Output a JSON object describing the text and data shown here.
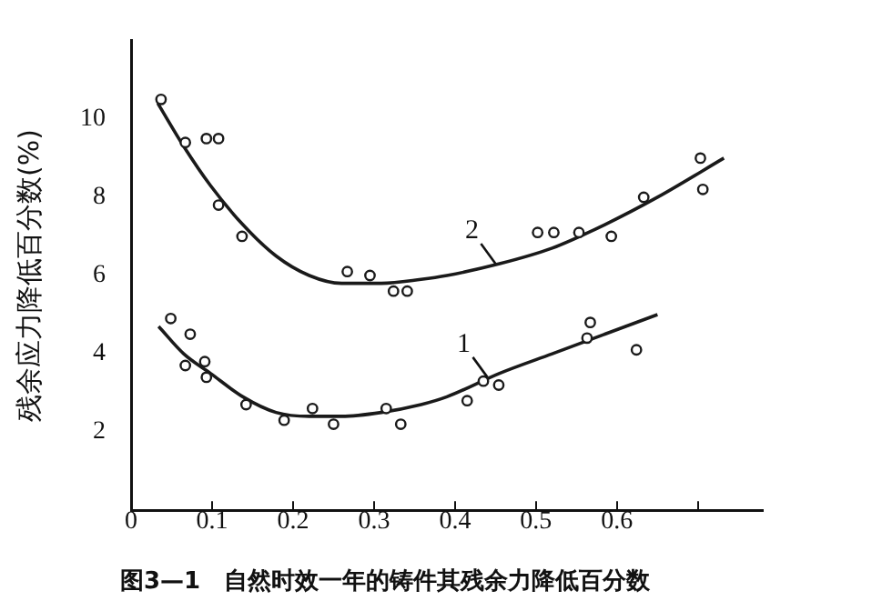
{
  "chart_data": {
    "type": "scatter",
    "title": "图3—1　自然时效一年的铸件其残余力降低百分数",
    "ylabel": "残余应力降低百分数(%)",
    "xlim": [
      0,
      0.78
    ],
    "xticks": [
      0,
      0.1,
      0.2,
      0.3,
      0.4,
      0.5,
      0.6,
      {
        "value": 0.7,
        "label": null
      }
    ],
    "ylim": [
      0,
      12
    ],
    "yticks": [
      2,
      4,
      6,
      8,
      10
    ],
    "grid": false,
    "legend": false,
    "series": [
      {
        "marker": "circle",
        "color": "#1a1a1a",
        "x": [
          0.037,
          0.067,
          0.093,
          0.108,
          0.108,
          0.137,
          0.267,
          0.295,
          0.324,
          0.341,
          0.502,
          0.522,
          0.553,
          0.593,
          0.633,
          0.703,
          0.706
        ],
        "values": [
          10.5,
          9.4,
          9.5,
          9.5,
          7.8,
          7.0,
          6.1,
          6.0,
          5.6,
          5.6,
          7.1,
          7.1,
          7.1,
          7.0,
          8.0,
          9.0,
          8.2
        ]
      },
      {
        "marker": "circle",
        "color": "#1a1a1a",
        "x": [
          0.049,
          0.073,
          0.067,
          0.091,
          0.093,
          0.142,
          0.189,
          0.224,
          0.25,
          0.315,
          0.333,
          0.415,
          0.435,
          0.454,
          0.563,
          0.567,
          0.624
        ],
        "values": [
          4.9,
          4.5,
          3.7,
          3.8,
          3.4,
          2.7,
          2.3,
          2.6,
          2.2,
          2.6,
          2.2,
          2.8,
          3.3,
          3.2,
          4.4,
          4.8,
          4.1
        ]
      },
      {
        "type": "line",
        "marker": "none",
        "color": "#1a1a1a",
        "x": [
          0.033,
          0.065,
          0.098,
          0.138,
          0.179,
          0.22,
          0.26,
          0.309,
          0.358,
          0.39,
          0.455,
          0.52,
          0.585,
          0.65,
          0.732
        ],
        "values": [
          10.4,
          9.3,
          8.3,
          7.3,
          6.5,
          6.0,
          5.8,
          5.8,
          5.9,
          6.0,
          6.3,
          6.7,
          7.3,
          8.0,
          9.0
        ]
      },
      {
        "type": "line",
        "marker": "none",
        "color": "#1a1a1a",
        "x": [
          0.034,
          0.065,
          0.098,
          0.138,
          0.179,
          0.22,
          0.26,
          0.309,
          0.358,
          0.39,
          0.455,
          0.52,
          0.585,
          0.65
        ],
        "values": [
          4.7,
          4.0,
          3.5,
          2.9,
          2.5,
          2.4,
          2.4,
          2.5,
          2.7,
          2.9,
          3.5,
          4.0,
          4.5,
          5.0
        ]
      }
    ],
    "annotations": [
      {
        "text": "2",
        "x": 0.45,
        "y": 6.3
      },
      {
        "text": "1",
        "x": 0.44,
        "y": 3.4
      }
    ]
  }
}
